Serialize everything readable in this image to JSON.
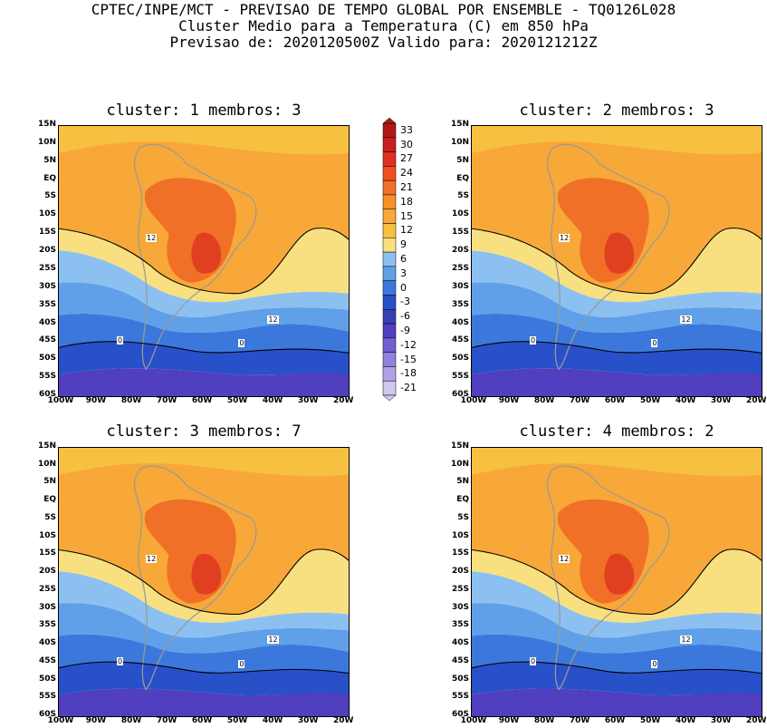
{
  "header": {
    "line1": "CPTEC/INPE/MCT - PREVISAO DE TEMPO GLOBAL POR ENSEMBLE - TQ0126L028",
    "line2": "Cluster Medio para a Temperatura (C) em 850 hPa",
    "line3": "Previsao de: 2020120500Z   Valido para: 2020121212Z"
  },
  "panels": [
    {
      "title": "cluster: 1  membros: 3",
      "contour_labels": [
        "12",
        "12",
        "0",
        "0"
      ]
    },
    {
      "title": "cluster: 2  membros: 3",
      "contour_labels": [
        "12",
        "12",
        "0",
        "0"
      ]
    },
    {
      "title": "cluster: 3  membros: 7",
      "contour_labels": [
        "12",
        "12",
        "0",
        "0"
      ]
    },
    {
      "title": "cluster: 4  membros: 2",
      "contour_labels": [
        "12",
        "12",
        "0",
        "0"
      ]
    }
  ],
  "lat_labels": [
    "15N",
    "10N",
    "5N",
    "EQ",
    "5S",
    "10S",
    "15S",
    "20S",
    "25S",
    "30S",
    "35S",
    "40S",
    "45S",
    "50S",
    "55S",
    "60S"
  ],
  "lon_labels": [
    "100W",
    "90W",
    "80W",
    "70W",
    "60W",
    "50W",
    "40W",
    "30W",
    "20W"
  ],
  "colorbar": {
    "labels": [
      "33",
      "30",
      "27",
      "24",
      "21",
      "18",
      "15",
      "12",
      "9",
      "6",
      "3",
      "0",
      "-3",
      "-6",
      "-9",
      "-12",
      "-15",
      "-18",
      "-21"
    ],
    "colors": [
      "#b01818",
      "#c82020",
      "#e03020",
      "#f05020",
      "#f07028",
      "#f89028",
      "#f8a838",
      "#f8c040",
      "#f8e080",
      "#8cc0f0",
      "#60a0e8",
      "#3c78dc",
      "#2850c8",
      "#3840b0",
      "#5040c0",
      "#7060d0",
      "#9080e0",
      "#b0a0e8",
      "#d0c8f0"
    ]
  },
  "colors": {
    "orange": "#f8a838",
    "light_orange": "#f8c040",
    "yellow": "#f8e080",
    "red_orange": "#f07028",
    "red": "#e04020",
    "light_blue": "#8cc0f0",
    "mid_blue": "#60a0e8",
    "blue": "#3c78dc",
    "dark_blue": "#2850c8",
    "purple": "#5040c0"
  }
}
